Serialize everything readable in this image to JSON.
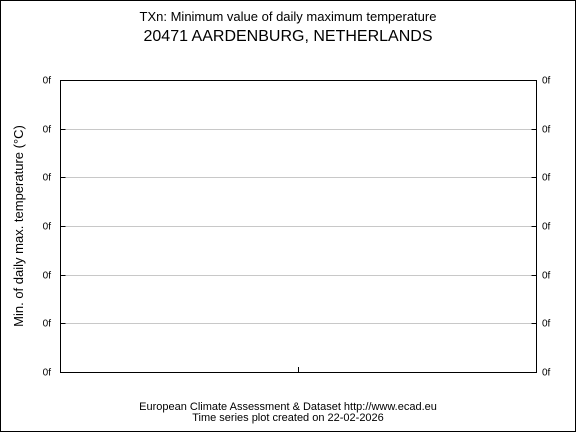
{
  "title": "TXn: Minimum value of daily maximum temperature",
  "subtitle": "20471 AARDENBURG, NETHERLANDS",
  "footer": {
    "line1": "European Climate Assessment & Dataset  http://www.ecad.eu",
    "line2": "Time series plot created on 22-02-2026"
  },
  "chart_data": {
    "type": "line",
    "title": "TXn: Minimum value of daily maximum temperature",
    "subtitle": "20471 AARDENBURG, NETHERLANDS",
    "ylabel": "Min. of daily max. temperature (°C)",
    "xlabel": "",
    "y_tick_labels": [
      "0f",
      "0f",
      "0f",
      "0f",
      "0f",
      "0f",
      "0f"
    ],
    "x_tick_labels": [],
    "series": [],
    "grid": true,
    "legend": "none",
    "colors": {
      "grid": "#c8c8c8",
      "axis": "#000000",
      "background": "#ffffff"
    }
  }
}
